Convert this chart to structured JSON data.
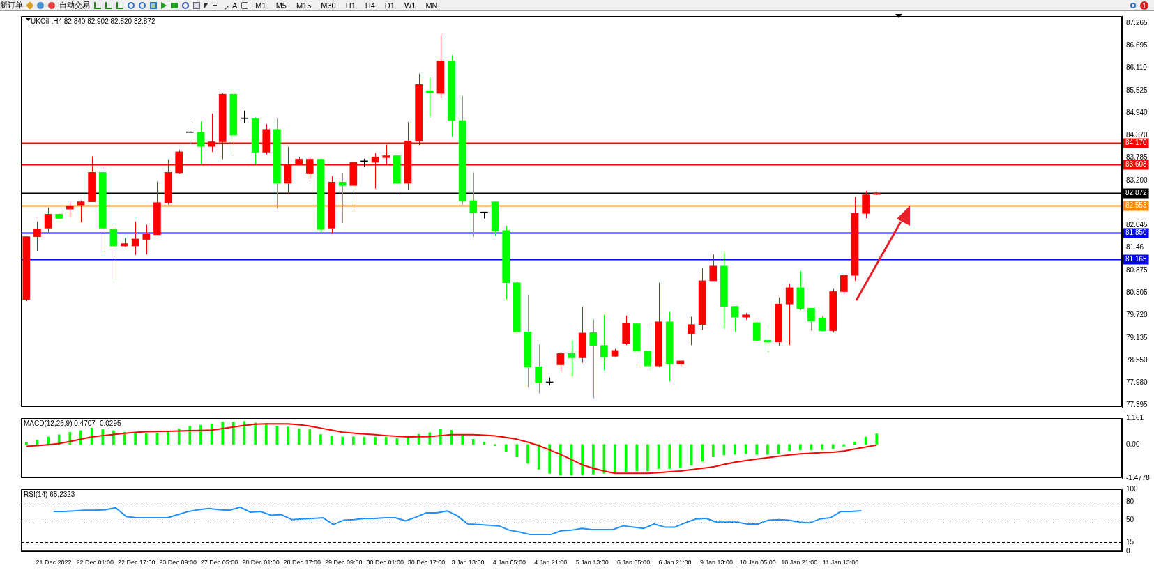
{
  "chart_data": [
    {
      "type": "candlestick",
      "annotations": [
        "UKOil-,H4 82.840 82.902 82.820 82.872",
        "新订单",
        "自动交易",
        "A",
        "M1",
        "M5",
        "M15",
        "M30",
        "H1",
        "H4",
        "D1",
        "W1",
        "MN",
        "1"
      ],
      "categories": [
        null,
        null,
        null,
        null,
        null,
        null,
        null,
        null,
        null,
        null,
        null,
        null,
        null,
        null,
        null,
        null,
        null,
        null,
        null,
        null,
        null,
        null,
        null,
        null,
        null,
        null,
        null,
        null,
        null,
        null,
        null,
        null,
        null,
        null,
        null,
        null,
        null,
        null,
        null,
        null,
        null,
        null,
        null,
        null,
        null,
        null,
        null,
        null,
        null,
        null,
        null,
        null,
        null,
        null,
        null,
        null,
        null,
        null,
        null,
        null,
        null,
        null,
        null,
        null,
        null,
        null,
        null,
        null,
        null,
        null,
        null,
        null,
        null,
        null,
        null,
        null,
        null,
        null,
        null,
        null,
        null,
        null,
        null,
        null,
        null,
        null,
        null,
        null,
        null,
        null,
        null,
        null,
        null,
        null,
        null,
        null,
        null,
        null,
        null,
        null,
        null
      ],
      "ohlc": [
        [
          80.13,
          81.75,
          80.08,
          81.75
        ],
        [
          81.75,
          82.14,
          81.38,
          81.95
        ],
        [
          81.97,
          82.5,
          81.87,
          82.33
        ],
        [
          82.33,
          82.35,
          82.21,
          82.22
        ],
        [
          82.46,
          82.65,
          82.27,
          82.54
        ],
        [
          82.57,
          82.69,
          82.13,
          82.65
        ],
        [
          82.65,
          83.82,
          82.65,
          83.41
        ],
        [
          83.41,
          83.48,
          81.34,
          81.97
        ],
        [
          81.94,
          82.0,
          80.64,
          81.51
        ],
        [
          81.51,
          81.71,
          81.49,
          81.57
        ],
        [
          81.51,
          82.14,
          81.28,
          81.69
        ],
        [
          81.68,
          82.06,
          81.29,
          81.81
        ],
        [
          81.8,
          83.17,
          81.8,
          82.63
        ],
        [
          82.63,
          83.74,
          82.58,
          83.41
        ],
        [
          83.4,
          83.99,
          83.38,
          83.94
        ],
        [
          84.44,
          84.79,
          84.14,
          84.45
        ],
        [
          84.45,
          84.73,
          83.61,
          84.08
        ],
        [
          84.08,
          84.93,
          83.94,
          84.2
        ],
        [
          84.2,
          85.46,
          83.75,
          85.43
        ],
        [
          85.43,
          85.56,
          83.86,
          84.37
        ],
        [
          84.81,
          85.0,
          84.69,
          84.8
        ],
        [
          84.8,
          84.83,
          83.61,
          83.93
        ],
        [
          83.93,
          84.66,
          83.87,
          84.52
        ],
        [
          84.52,
          84.8,
          82.48,
          83.13
        ],
        [
          83.13,
          84.07,
          82.86,
          83.61
        ],
        [
          83.61,
          83.81,
          83.59,
          83.75
        ],
        [
          83.39,
          83.8,
          83.24,
          83.75
        ],
        [
          83.75,
          83.77,
          81.87,
          81.94
        ],
        [
          81.97,
          83.31,
          81.81,
          83.16
        ],
        [
          83.16,
          83.4,
          82.1,
          83.07
        ],
        [
          83.07,
          83.69,
          82.42,
          83.67
        ],
        [
          83.69,
          83.76,
          83.54,
          83.7
        ],
        [
          83.67,
          83.91,
          82.99,
          83.81
        ],
        [
          83.79,
          84.13,
          83.61,
          83.84
        ],
        [
          83.84,
          83.84,
          82.86,
          83.13
        ],
        [
          83.13,
          84.71,
          82.97,
          84.22
        ],
        [
          84.22,
          85.96,
          84.11,
          85.68
        ],
        [
          85.52,
          85.87,
          84.83,
          85.47
        ],
        [
          85.45,
          86.97,
          85.34,
          86.29
        ],
        [
          86.29,
          86.44,
          84.33,
          84.75
        ],
        [
          84.75,
          85.38,
          82.58,
          82.67
        ],
        [
          82.68,
          83.41,
          81.75,
          82.37
        ],
        [
          82.38,
          82.39,
          82.22,
          82.37
        ],
        [
          82.65,
          82.65,
          81.77,
          81.89
        ],
        [
          81.91,
          82.02,
          80.13,
          80.56
        ],
        [
          80.56,
          80.59,
          79.22,
          79.29
        ],
        [
          79.29,
          80.24,
          77.86,
          78.38
        ],
        [
          78.39,
          78.96,
          77.7,
          77.98
        ],
        [
          77.98,
          78.11,
          77.91,
          77.99
        ],
        [
          78.44,
          78.77,
          78.26,
          78.73
        ],
        [
          78.73,
          79.07,
          78.14,
          78.62
        ],
        [
          78.62,
          79.95,
          78.49,
          79.26
        ],
        [
          79.27,
          79.61,
          77.58,
          78.94
        ],
        [
          78.94,
          79.73,
          78.3,
          78.64
        ],
        [
          78.66,
          78.85,
          78.64,
          78.81
        ],
        [
          78.99,
          79.71,
          78.95,
          79.51
        ],
        [
          79.5,
          79.51,
          78.41,
          78.79
        ],
        [
          78.79,
          79.49,
          78.29,
          78.41
        ],
        [
          78.41,
          80.56,
          78.38,
          79.55
        ],
        [
          79.55,
          79.81,
          78.01,
          78.46
        ],
        [
          78.46,
          78.55,
          78.4,
          78.54
        ],
        [
          79.24,
          79.68,
          78.95,
          79.48
        ],
        [
          79.48,
          80.94,
          79.34,
          80.61
        ],
        [
          80.61,
          81.29,
          80.61,
          80.99
        ],
        [
          80.99,
          81.34,
          79.39,
          79.95
        ],
        [
          79.95,
          79.95,
          79.29,
          79.67
        ],
        [
          79.67,
          79.78,
          79.61,
          79.73
        ],
        [
          79.53,
          79.6,
          79.05,
          79.07
        ],
        [
          79.07,
          79.5,
          78.77,
          79.03
        ],
        [
          79.03,
          80.18,
          78.94,
          80.01
        ],
        [
          80.01,
          80.53,
          78.95,
          80.43
        ],
        [
          80.43,
          80.86,
          79.85,
          79.89
        ],
        [
          79.9,
          79.9,
          79.32,
          79.57
        ],
        [
          79.65,
          79.7,
          79.3,
          79.32
        ],
        [
          79.32,
          80.4,
          79.27,
          80.33
        ],
        [
          80.33,
          80.78,
          80.28,
          80.75
        ],
        [
          80.75,
          82.78,
          80.61,
          82.35
        ],
        [
          82.35,
          82.93,
          82.23,
          82.83
        ],
        [
          82.84,
          82.902,
          82.82,
          82.872
        ],
        null,
        null,
        null,
        null,
        null,
        null,
        null,
        null,
        null,
        null,
        null,
        null,
        null,
        null,
        null,
        null,
        null,
        null,
        null,
        null,
        null,
        null
      ],
      "colors": [
        "#ff0000",
        "#ff0000",
        "#ff0000",
        "#00ff00",
        "#ff0000",
        "#ff0000",
        "#ff0000",
        "#00ff00",
        "#00ff00",
        "#ff0000",
        "#ff0000",
        "#ff0000",
        "#ff0000",
        "#ff0000",
        "#ff0000",
        "#000000",
        "#00ff00",
        "#ff0000",
        "#ff0000",
        "#00ff00",
        "#000000",
        "#00ff00",
        "#ff0000",
        "#00ff00",
        "#ff0000",
        "#ff0000",
        "#ff0000",
        "#00ff00",
        "#ff0000",
        "#00ff00",
        "#ff0000",
        "#000000",
        "#ff0000",
        "#ff0000",
        "#00ff00",
        "#ff0000",
        "#ff0000",
        "#00ff00",
        "#ff0000",
        "#00ff00",
        "#00ff00",
        "#00ff00",
        "#000000",
        "#00ff00",
        "#00ff00",
        "#00ff00",
        "#00ff00",
        "#00ff00",
        "#000000",
        "#ff0000",
        "#00ff00",
        "#ff0000",
        "#00ff00",
        "#00ff00",
        "#ff0000",
        "#ff0000",
        "#00ff00",
        "#00ff00",
        "#ff0000",
        "#00ff00",
        "#ff0000",
        "#ff0000",
        "#ff0000",
        "#ff0000",
        "#00ff00",
        "#00ff00",
        "#ff0000",
        "#00ff00",
        "#00ff00",
        "#ff0000",
        "#ff0000",
        "#00ff00",
        "#00ff00",
        "#00ff00",
        "#ff0000",
        "#ff0000",
        "#ff0000",
        "#ff0000",
        "#ff0000",
        null,
        null,
        null,
        null,
        null,
        null,
        null,
        null,
        null,
        null,
        null,
        null,
        null,
        null,
        null,
        null,
        null,
        null,
        null,
        null,
        null,
        null
      ],
      "ylim": [
        77.35,
        87.45
      ],
      "yticks": [
        77.395,
        {
          "value": 77.98,
          "label": "77.980"
        },
        {
          "value": 78.55,
          "label": "78.550"
        },
        79.135,
        {
          "value": 79.72,
          "label": "79.720"
        },
        80.305,
        80.875,
        81.46,
        82.045,
        {
          "value": 83.2,
          "label": "83.200"
        },
        83.785,
        {
          "value": 84.37,
          "label": "84.370"
        },
        {
          "value": 84.94,
          "label": "84.940"
        },
        85.525,
        {
          "value": 86.11,
          "label": "86.110"
        },
        86.695,
        87.265
      ],
      "ref_lines": [
        {
          "axis": "y",
          "value": 84.17,
          "label": "84.170",
          "color": "#ff0000"
        },
        {
          "axis": "y",
          "value": 83.608,
          "label": "83.608",
          "color": "#ff0000"
        },
        {
          "axis": "y",
          "value": 82.872,
          "label": "82.872",
          "color": "#000000"
        },
        {
          "axis": "y",
          "value": 82.553,
          "label": "82.553",
          "color": "#ff8c00"
        },
        {
          "axis": "y",
          "value": 81.85,
          "label": "81.850",
          "color": "#0000ff"
        },
        {
          "axis": "y",
          "value": 81.165,
          "label": "81.165",
          "color": "#0000ff"
        }
      ],
      "grid": false,
      "legend": false,
      "tick_labels": "y"
    },
    {
      "type": "bar",
      "title": "MACD(12,26,9) 0.4707 -0.0295",
      "categories": [
        null,
        null,
        null,
        null,
        null,
        null,
        null,
        null,
        null,
        null,
        null,
        null,
        null,
        null,
        null,
        null,
        null,
        null,
        null,
        null,
        null,
        null,
        null,
        null,
        null,
        null,
        null,
        null,
        null,
        null,
        null,
        null,
        null,
        null,
        null,
        null,
        null,
        null,
        null,
        null,
        null,
        null,
        null,
        null,
        null,
        null,
        null,
        null,
        null,
        null,
        null,
        null,
        null,
        null,
        null,
        null,
        null,
        null,
        null,
        null,
        null,
        null,
        null,
        null,
        null,
        null,
        null,
        null,
        null,
        null,
        null,
        null,
        null,
        null,
        null,
        null,
        null,
        null,
        null,
        null,
        null,
        null,
        null,
        null,
        null,
        null,
        null,
        null,
        null,
        null,
        null,
        null,
        null,
        null,
        null,
        null,
        null,
        null,
        null,
        null,
        null
      ],
      "series": [
        {
          "type": "bar",
          "color": "#00ff00",
          "values": [
            0.08,
            0.19,
            0.33,
            0.43,
            0.54,
            0.61,
            0.72,
            0.65,
            0.61,
            0.54,
            0.51,
            0.48,
            0.51,
            0.56,
            0.69,
            0.8,
            0.85,
            0.91,
            0.99,
            0.99,
            1.02,
            0.95,
            0.93,
            0.81,
            0.77,
            0.7,
            0.65,
            0.44,
            0.37,
            0.33,
            0.34,
            0.33,
            0.33,
            0.33,
            0.26,
            0.3,
            0.45,
            0.52,
            0.66,
            0.63,
            0.4,
            0.23,
            0.11,
            -0.05,
            -0.3,
            -0.55,
            -0.83,
            -1.09,
            -1.27,
            -1.35,
            -1.35,
            -1.34,
            -1.31,
            -1.27,
            -1.27,
            -1.2,
            -1.17,
            -1.17,
            -1.06,
            -1.06,
            -1.02,
            -0.92,
            -0.74,
            -0.55,
            -0.46,
            -0.44,
            -0.4,
            -0.44,
            -0.44,
            -0.4,
            -0.27,
            -0.24,
            -0.24,
            -0.23,
            -0.19,
            -0.08,
            0.11,
            0.33,
            0.4707,
            null,
            null,
            null,
            null,
            null,
            null,
            null,
            null,
            null,
            null,
            null,
            null,
            null,
            null,
            null,
            null,
            null,
            null,
            null,
            null,
            null,
            null
          ]
        },
        {
          "type": "line",
          "color": "#ff0000",
          "values": [
            -0.08,
            -0.05,
            -0.01,
            0.04,
            0.13,
            0.23,
            0.33,
            0.39,
            0.44,
            0.49,
            0.53,
            0.56,
            0.57,
            0.58,
            0.59,
            0.61,
            0.62,
            0.63,
            0.7,
            0.77,
            0.84,
            0.89,
            0.91,
            0.91,
            0.91,
            0.87,
            0.81,
            0.72,
            0.63,
            0.54,
            0.5,
            0.46,
            0.43,
            0.39,
            0.36,
            0.33,
            0.34,
            0.35,
            0.39,
            0.43,
            0.43,
            0.43,
            0.41,
            0.38,
            0.31,
            0.23,
            0.1,
            -0.05,
            -0.24,
            -0.44,
            -0.66,
            -0.9,
            -1.05,
            -1.17,
            -1.27,
            -1.27,
            -1.27,
            -1.27,
            -1.24,
            -1.2,
            -1.17,
            -1.11,
            -1.05,
            -0.99,
            -0.88,
            -0.78,
            -0.71,
            -0.64,
            -0.58,
            -0.52,
            -0.46,
            -0.41,
            -0.39,
            -0.36,
            -0.34,
            -0.29,
            -0.2,
            -0.11,
            -0.0295,
            null,
            null,
            null,
            null,
            null,
            null,
            null,
            null,
            null,
            null,
            null,
            null,
            null,
            null,
            null,
            null,
            null,
            null,
            null,
            null,
            null,
            null
          ]
        }
      ],
      "ylim": [
        -1.4778,
        1.161
      ],
      "yticks": [
        -1.4778,
        {
          "value": 0,
          "label": "0.00"
        },
        1.161
      ],
      "grid": false,
      "legend": false,
      "tick_labels": "y",
      "marker": "none"
    },
    {
      "type": "line",
      "title": "RSI(14) 65.2323",
      "categories": [
        "21 Dec 2022",
        null,
        null,
        null,
        "22 Dec 01:00",
        null,
        null,
        null,
        "22 Dec 17:00",
        null,
        null,
        null,
        "23 Dec 09:00",
        null,
        null,
        null,
        "27 Dec 05:00",
        null,
        null,
        null,
        "28 Dec 01:00",
        null,
        null,
        null,
        "28 Dec 17:00",
        null,
        null,
        null,
        "29 Dec 09:00",
        null,
        null,
        null,
        "30 Dec 01:00",
        null,
        null,
        null,
        "30 Dec 17:00",
        null,
        null,
        null,
        "3 Jan 13:00",
        null,
        null,
        null,
        "4 Jan 05:00",
        null,
        null,
        null,
        "4 Jan 21:00",
        null,
        null,
        null,
        "5 Jan 13:00",
        null,
        null,
        null,
        "6 Jan 05:00",
        null,
        null,
        null,
        "6 Jan 21:00",
        null,
        null,
        null,
        "9 Jan 13:00",
        null,
        null,
        null,
        "10 Jan 05:00",
        null,
        null,
        null,
        "10 Jan 21:00",
        null,
        null,
        null,
        "11 Jan 13:00",
        null,
        null,
        null,
        null,
        null,
        null,
        null,
        null,
        null,
        null,
        null,
        null,
        null,
        null,
        null,
        null,
        null,
        null,
        null,
        null,
        null,
        null,
        null,
        null
      ],
      "series": [
        {
          "color": "#1e90ff",
          "values": [
            64,
            64,
            65,
            66,
            66,
            67,
            70,
            56,
            54,
            54,
            54,
            54,
            59,
            64,
            67,
            69,
            67,
            66,
            71,
            63,
            64,
            58,
            59,
            51,
            52,
            53,
            54,
            43,
            50,
            51,
            53,
            53,
            54,
            54,
            49,
            55,
            62,
            62,
            65,
            57,
            44,
            43,
            42,
            41,
            34,
            31,
            27,
            27,
            27,
            33,
            34,
            37,
            35,
            35,
            35,
            41,
            39,
            37,
            44,
            39,
            39,
            46,
            52,
            53,
            47,
            47,
            47,
            44,
            44,
            50,
            51,
            50,
            47,
            46,
            52,
            54,
            64,
            64,
            65.2323,
            null,
            null,
            null,
            null,
            null,
            null,
            null,
            null,
            null,
            null,
            null,
            null,
            null,
            null,
            null,
            null,
            null,
            null,
            null,
            null,
            null,
            null
          ]
        }
      ],
      "ylim": [
        0,
        100
      ],
      "yticks": [
        0,
        15,
        50,
        80,
        100
      ],
      "ref_lines": [
        {
          "axis": "y",
          "value": 80,
          "color": "#000000",
          "line_style": "dashed"
        },
        {
          "axis": "y",
          "value": 50,
          "color": "#000000",
          "line_style": "dashed"
        },
        {
          "axis": "y",
          "value": 15,
          "color": "#000000",
          "line_style": "dashed"
        }
      ],
      "grid": false,
      "legend": false,
      "marker": "none",
      "line_style": "solid"
    }
  ]
}
